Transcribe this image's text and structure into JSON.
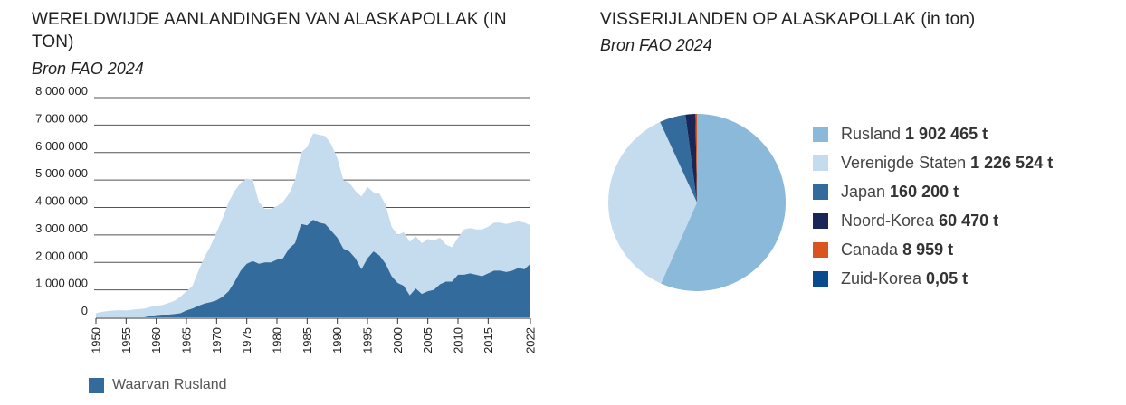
{
  "left": {
    "title": "WERELDWIJDE AANLANDINGEN VAN ALASKAPOLLAK (IN TON)",
    "source": "Bron FAO 2024",
    "legend_label": "Waarvan Rusland"
  },
  "right": {
    "title": "VISSERIJLANDEN OP ALASKAPOLLAK (in ton)",
    "source": "Bron FAO 2024"
  },
  "colors": {
    "total": "#c5dcee",
    "russia": "#336c9c",
    "grid": "#555555"
  },
  "chart_data": [
    {
      "type": "area",
      "title": "WERELDWIJDE AANLANDINGEN VAN ALASKAPOLLAK (IN TON)",
      "ylim": [
        0,
        8000000
      ],
      "yticks": [
        0,
        1000000,
        2000000,
        3000000,
        4000000,
        5000000,
        6000000,
        7000000,
        8000000
      ],
      "ytick_labels": [
        "0",
        "1 000 000",
        "2 000 000",
        "3 000 000",
        "4 000 000",
        "5 000 000",
        "6 000 000",
        "7 000 000",
        "8 000 000"
      ],
      "xlim": [
        1950,
        2022
      ],
      "xticks": [
        1950,
        1955,
        1960,
        1965,
        1970,
        1975,
        1980,
        1985,
        1990,
        1995,
        2000,
        2005,
        2010,
        2015,
        2022
      ],
      "x": [
        1950,
        1951,
        1952,
        1953,
        1954,
        1955,
        1956,
        1957,
        1958,
        1959,
        1960,
        1961,
        1962,
        1963,
        1964,
        1965,
        1966,
        1967,
        1968,
        1969,
        1970,
        1971,
        1972,
        1973,
        1974,
        1975,
        1976,
        1977,
        1978,
        1979,
        1980,
        1981,
        1982,
        1983,
        1984,
        1985,
        1986,
        1987,
        1988,
        1989,
        1990,
        1991,
        1992,
        1993,
        1994,
        1995,
        1996,
        1997,
        1998,
        1999,
        2000,
        2001,
        2002,
        2003,
        2004,
        2005,
        2006,
        2007,
        2008,
        2009,
        2010,
        2011,
        2012,
        2013,
        2014,
        2015,
        2016,
        2017,
        2018,
        2019,
        2020,
        2021,
        2022
      ],
      "series": [
        {
          "name": "",
          "values": [
            150000,
            200000,
            230000,
            250000,
            260000,
            250000,
            280000,
            300000,
            320000,
            380000,
            420000,
            450000,
            520000,
            600000,
            750000,
            950000,
            1150000,
            1700000,
            2200000,
            2600000,
            3100000,
            3600000,
            4200000,
            4600000,
            4900000,
            5050000,
            5000000,
            4200000,
            3950000,
            3950000,
            4050000,
            4200000,
            4500000,
            5000000,
            6000000,
            6200000,
            6700000,
            6650000,
            6600000,
            6300000,
            5800000,
            5000000,
            4900000,
            4600000,
            4400000,
            4750000,
            4550000,
            4500000,
            4100000,
            3300000,
            3000000,
            3100000,
            2750000,
            2950000,
            2700000,
            2850000,
            2800000,
            2900000,
            2650000,
            2550000,
            2900000,
            3200000,
            3250000,
            3200000,
            3200000,
            3300000,
            3450000,
            3450000,
            3400000,
            3450000,
            3500000,
            3450000,
            3350000
          ]
        },
        {
          "name": "Waarvan Rusland",
          "values": [
            0,
            0,
            0,
            0,
            0,
            0,
            0,
            0,
            0,
            50000,
            80000,
            100000,
            100000,
            120000,
            150000,
            250000,
            320000,
            420000,
            500000,
            550000,
            620000,
            750000,
            950000,
            1300000,
            1700000,
            1950000,
            2050000,
            1950000,
            2000000,
            2000000,
            2100000,
            2150000,
            2500000,
            2700000,
            3400000,
            3350000,
            3550000,
            3450000,
            3400000,
            3150000,
            2900000,
            2500000,
            2400000,
            2150000,
            1750000,
            2150000,
            2400000,
            2250000,
            1950000,
            1500000,
            1250000,
            1150000,
            800000,
            1050000,
            850000,
            950000,
            1000000,
            1200000,
            1300000,
            1300000,
            1550000,
            1550000,
            1600000,
            1550000,
            1500000,
            1600000,
            1700000,
            1700000,
            1650000,
            1700000,
            1800000,
            1750000,
            1950000
          ]
        }
      ]
    },
    {
      "type": "pie",
      "title": "VISSERIJLANDEN OP ALASKAPOLLAK (in ton)",
      "labels": [
        "Rusland",
        "Verenigde Staten",
        "Japan",
        "Noord-Korea",
        "Canada",
        "Zuid-Korea"
      ],
      "value_labels": [
        "1 902 465 t",
        "1 226 524 t",
        "160 200 t",
        "60 470 t",
        "8 959 t",
        "0,05 t"
      ],
      "values": [
        1902465,
        1226524,
        160200,
        60470,
        8959,
        0.05
      ],
      "colors": [
        "#8bb9da",
        "#c5dcee",
        "#336c9c",
        "#1a2656",
        "#d9541e",
        "#0a4a8f"
      ],
      "legend_position": "right"
    }
  ]
}
